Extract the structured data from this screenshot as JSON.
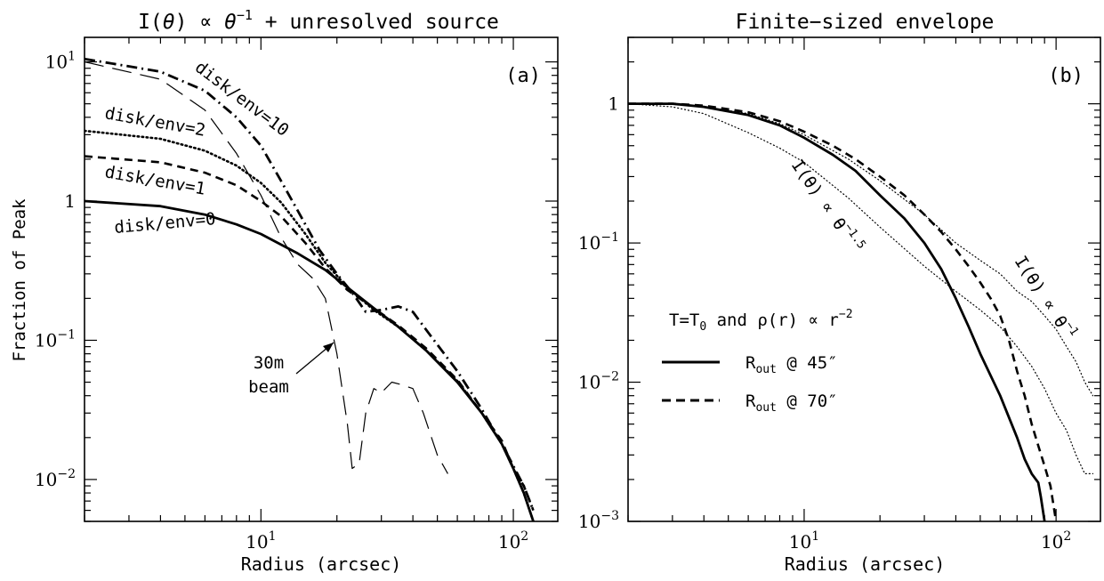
{
  "figure": {
    "ylabel": "Fraction of Peak"
  },
  "chart_data": [
    {
      "type": "line",
      "panel": "(a)",
      "title": "I(θ) ∝ θ^−1 + unresolved source",
      "xlabel": "Radius (arcsec)",
      "ylabel": "Fraction of Peak",
      "xscale": "log",
      "yscale": "log",
      "xlim": [
        2,
        150
      ],
      "ylim": [
        0.005,
        15
      ],
      "xticks": [
        {
          "value": 10,
          "base": "10",
          "exp": "1"
        },
        {
          "value": 100,
          "base": "10",
          "exp": "2"
        }
      ],
      "yticks": [
        {
          "value": 0.01,
          "base": "10",
          "exp": "−2"
        },
        {
          "value": 0.1,
          "base": "10",
          "exp": "−1"
        },
        {
          "value": 1,
          "base": "1",
          "exp": ""
        },
        {
          "value": 10,
          "base": "10",
          "exp": "1"
        }
      ],
      "series": [
        {
          "name": "disk/env=0",
          "style": "solid",
          "x": [
            2,
            4,
            6,
            8,
            10,
            14,
            18,
            22,
            28,
            35,
            45,
            60,
            75,
            90,
            100,
            110,
            120
          ],
          "y": [
            1.0,
            0.92,
            0.8,
            0.68,
            0.58,
            0.42,
            0.32,
            0.24,
            0.17,
            0.125,
            0.085,
            0.05,
            0.03,
            0.018,
            0.012,
            0.008,
            0.005
          ]
        },
        {
          "name": "disk/env=1",
          "style": "dashed",
          "x": [
            2,
            4,
            6,
            8,
            10,
            12,
            15,
            18,
            22,
            28,
            35,
            45,
            60,
            75,
            90,
            100,
            110,
            120
          ],
          "y": [
            2.1,
            1.9,
            1.6,
            1.3,
            1.0,
            0.78,
            0.5,
            0.33,
            0.23,
            0.17,
            0.128,
            0.088,
            0.052,
            0.03,
            0.019,
            0.012,
            0.009,
            0.006
          ]
        },
        {
          "name": "disk/env=2",
          "style": "dotted",
          "x": [
            2,
            4,
            6,
            8,
            10,
            12,
            15,
            18,
            22,
            28,
            35,
            45,
            60,
            75,
            90,
            100,
            110,
            120
          ],
          "y": [
            3.2,
            2.8,
            2.3,
            1.8,
            1.35,
            0.98,
            0.58,
            0.36,
            0.24,
            0.165,
            0.125,
            0.085,
            0.051,
            0.03,
            0.018,
            0.012,
            0.008,
            0.005
          ]
        },
        {
          "name": "disk/env=10",
          "style": "dash-dot",
          "x": [
            2,
            4,
            6,
            8,
            10,
            12,
            14,
            17,
            20,
            23,
            26,
            30,
            35,
            40,
            45,
            60,
            75,
            90,
            110,
            120
          ],
          "y": [
            10.5,
            8.5,
            6.2,
            4.0,
            2.5,
            1.4,
            0.85,
            0.45,
            0.3,
            0.22,
            0.16,
            0.165,
            0.175,
            0.16,
            0.12,
            0.06,
            0.032,
            0.018,
            0.009,
            0.006
          ]
        },
        {
          "name": "30m beam",
          "style": "long-dashed",
          "x": [
            2,
            4,
            6,
            8,
            10,
            12,
            14,
            16,
            18,
            20,
            22,
            23,
            24.5,
            26,
            28,
            30,
            33,
            36,
            40,
            44,
            50,
            55
          ],
          "y": [
            10.0,
            7.5,
            4.5,
            2.2,
            1.1,
            0.55,
            0.35,
            0.28,
            0.2,
            0.08,
            0.025,
            0.012,
            0.013,
            0.03,
            0.045,
            0.042,
            0.05,
            0.048,
            0.045,
            0.03,
            0.015,
            0.011
          ]
        }
      ],
      "annotations": [
        {
          "text": "(a)"
        },
        {
          "text": "disk/env=10"
        },
        {
          "text": "disk/env=2"
        },
        {
          "text": "disk/env=1"
        },
        {
          "text": "disk/env=0"
        },
        {
          "text": "30m"
        },
        {
          "text": "beam"
        }
      ]
    },
    {
      "type": "line",
      "panel": "(b)",
      "title": "Finite−sized envelope",
      "xlabel": "Radius (arcsec)",
      "xscale": "log",
      "yscale": "log",
      "xlim": [
        2,
        150
      ],
      "ylim": [
        0.001,
        3
      ],
      "xticks": [
        {
          "value": 10,
          "base": "10",
          "exp": "1"
        },
        {
          "value": 100,
          "base": "10",
          "exp": "2"
        }
      ],
      "yticks": [
        {
          "value": 0.001,
          "base": "10",
          "exp": "−3"
        },
        {
          "value": 0.01,
          "base": "10",
          "exp": "−2"
        },
        {
          "value": 0.1,
          "base": "10",
          "exp": "−1"
        },
        {
          "value": 1,
          "base": "1",
          "exp": ""
        }
      ],
      "series": [
        {
          "name": "R_out @ 45″",
          "style": "solid",
          "x": [
            2,
            3,
            4,
            6,
            8,
            10,
            13,
            16,
            20,
            25,
            30,
            35,
            40,
            45,
            50,
            60,
            70,
            75,
            80,
            85,
            87,
            90
          ],
          "y": [
            1.0,
            1.0,
            0.95,
            0.83,
            0.7,
            0.57,
            0.43,
            0.33,
            0.22,
            0.15,
            0.1,
            0.065,
            0.04,
            0.025,
            0.016,
            0.008,
            0.004,
            0.0028,
            0.0022,
            0.0019,
            0.0015,
            0.001
          ]
        },
        {
          "name": "R_out @ 70″",
          "style": "dashed",
          "x": [
            2,
            3,
            4,
            6,
            8,
            10,
            13,
            16,
            20,
            25,
            30,
            35,
            40,
            45,
            50,
            55,
            60,
            65,
            70,
            75,
            80,
            85,
            90,
            95,
            100
          ],
          "y": [
            1.0,
            1.0,
            0.97,
            0.87,
            0.75,
            0.63,
            0.5,
            0.4,
            0.3,
            0.22,
            0.16,
            0.12,
            0.09,
            0.068,
            0.052,
            0.04,
            0.03,
            0.02,
            0.012,
            0.008,
            0.005,
            0.0035,
            0.0025,
            0.0018,
            0.001
          ]
        },
        {
          "name": "I(θ) ∝ θ^−1.5",
          "style": "thin-dotted",
          "x": [
            2,
            3,
            4,
            6,
            8,
            10,
            15,
            20,
            30,
            40,
            50,
            60,
            70,
            80,
            90,
            100,
            110,
            120,
            130,
            140
          ],
          "y": [
            1.0,
            0.95,
            0.85,
            0.62,
            0.48,
            0.38,
            0.21,
            0.13,
            0.068,
            0.045,
            0.033,
            0.025,
            0.018,
            0.013,
            0.009,
            0.006,
            0.0045,
            0.003,
            0.0022,
            0.0022
          ]
        },
        {
          "name": "I(θ) ∝ θ^−1",
          "style": "thin-dotted",
          "x": [
            2,
            3,
            4,
            6,
            8,
            10,
            15,
            20,
            30,
            40,
            50,
            60,
            70,
            80,
            90,
            100,
            110,
            120,
            130,
            140
          ],
          "y": [
            1.0,
            1.0,
            0.95,
            0.85,
            0.72,
            0.6,
            0.4,
            0.28,
            0.16,
            0.1,
            0.075,
            0.06,
            0.045,
            0.038,
            0.03,
            0.024,
            0.018,
            0.014,
            0.01,
            0.008
          ]
        }
      ],
      "annotations": [
        {
          "text": "(b)"
        },
        {
          "text": "I(θ) ∝ θ^−1.5"
        },
        {
          "text": "I(θ) ∝ θ^−1"
        }
      ],
      "legend": {
        "header": "T=T0 and ρ(r) ∝ r^−2",
        "entries": [
          "R_out @ 45″",
          "R_out @ 70″"
        ],
        "placement": "center-left"
      }
    }
  ],
  "labels": {
    "a": {
      "title_pre": "I(",
      "title_theta": "θ",
      "title_mid": ") ∝ ",
      "title_theta2": "θ",
      "title_exp": "−1",
      "title_post": " + unresolved source",
      "panel": "(a)",
      "xlabel": "Radius (arcsec)",
      "d10": "disk/env=10",
      "d2": "disk/env=2",
      "d1": "disk/env=1",
      "d0": "disk/env=0",
      "beam1": "30m",
      "beam2": "beam"
    },
    "b": {
      "title": "Finite−sized envelope",
      "panel": "(b)",
      "xlabel": "Radius (arcsec)",
      "ann1_pre": "I(θ) ∝ θ",
      "ann1_exp": "−1.5",
      "ann2_pre": "I(θ) ∝ θ",
      "ann2_exp": "−1",
      "legend_pre": "T=T",
      "legend_sub": "0",
      "legend_mid": " and ρ(r) ∝ r",
      "legend_exp": "−2",
      "leg1_r": "R",
      "leg1_sub": "out",
      "leg1_post": " @ 45″",
      "leg2_r": "R",
      "leg2_sub": "out",
      "leg2_post": " @ 70″"
    }
  }
}
